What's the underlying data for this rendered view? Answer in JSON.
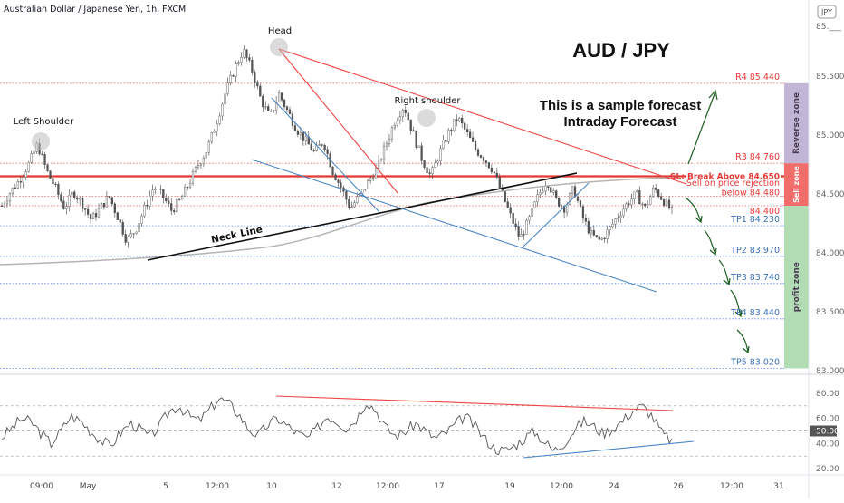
{
  "header": {
    "symbol_title": "Australian Dollar / Japanese Yen, 1h, FXCM",
    "logo_text": "JPY"
  },
  "chart_data": [
    {
      "type": "candlestick",
      "title": "AUD / JPY",
      "annotations": {
        "forecast_line1": "This is a sample forecast",
        "forecast_line2": "Intraday Forecast",
        "head": "Head",
        "left_shoulder": "Left Shoulder",
        "right_shoulder": "Right shoulder",
        "neck_line": "Neck Line"
      },
      "y_axis": {
        "ticks": [
          "85.500",
          "85.000",
          "84.500",
          "84.000",
          "83.500",
          "83.000"
        ],
        "top_partial_tick": "85.___",
        "ylim": [
          83.0,
          85.75
        ]
      },
      "x_axis": {
        "ticks": [
          "09:00",
          "May",
          "5",
          "12:00",
          "10",
          "12",
          "12:00",
          "17",
          "19",
          "12:00",
          "24",
          "26",
          "12:00",
          "31"
        ]
      },
      "levels": [
        {
          "label": "R4 85.440",
          "value": 85.44,
          "color": "#e53935",
          "style": "dotted"
        },
        {
          "label": "R3 84.760",
          "value": 84.76,
          "color": "#e53935",
          "style": "dotted"
        },
        {
          "label": "SL: Break Above 84.650",
          "value": 84.65,
          "color": "#e53935",
          "style": "solid",
          "highlight": true
        },
        {
          "label": "Sell on price rejection",
          "value": 84.56,
          "color": "#e53935",
          "style": "none"
        },
        {
          "label": "below 84.480",
          "value": 84.48,
          "color": "#e53935",
          "style": "dotted"
        },
        {
          "label": "84.400",
          "value": 84.4,
          "color": "#e53935",
          "style": "dotted"
        },
        {
          "label": "TP1 84.230",
          "value": 84.23,
          "color": "#2962ff",
          "style": "dotted"
        },
        {
          "label": "TP2 83.970",
          "value": 83.97,
          "color": "#2962ff",
          "style": "dotted"
        },
        {
          "label": "TP3 83.740",
          "value": 83.74,
          "color": "#2962ff",
          "style": "dotted"
        },
        {
          "label": "TP4 83.440",
          "value": 83.44,
          "color": "#2962ff",
          "style": "dotted"
        },
        {
          "label": "TP5 83.020",
          "value": 83.02,
          "color": "#2962ff",
          "style": "dotted"
        }
      ],
      "zones": [
        {
          "label": "Reverse zone",
          "from": 84.76,
          "to": 85.44,
          "color": "#b7a9cf"
        },
        {
          "label": "Sell zone",
          "from": 84.4,
          "to": 84.76,
          "color": "#ef5350"
        },
        {
          "label": "profit zone",
          "from": 83.02,
          "to": 84.4,
          "color": "#a5d6a7"
        }
      ],
      "price_path": [
        84.4,
        84.52,
        84.62,
        84.75,
        84.92,
        84.7,
        84.55,
        84.38,
        84.52,
        84.42,
        84.28,
        84.38,
        84.48,
        84.3,
        84.1,
        84.2,
        84.38,
        84.56,
        84.48,
        84.36,
        84.45,
        84.6,
        84.75,
        84.88,
        85.1,
        85.35,
        85.55,
        85.72,
        85.55,
        85.3,
        85.15,
        85.35,
        85.2,
        85.05,
        84.95,
        84.85,
        84.95,
        84.7,
        84.55,
        84.38,
        84.48,
        84.6,
        84.72,
        84.92,
        85.12,
        85.25,
        85.02,
        84.8,
        84.65,
        84.85,
        85.02,
        85.15,
        85.02,
        84.88,
        84.8,
        84.7,
        84.5,
        84.3,
        84.12,
        84.28,
        84.48,
        84.62,
        84.45,
        84.38,
        84.55,
        84.3,
        84.15,
        84.1,
        84.2,
        84.32,
        84.42,
        84.5,
        84.38,
        84.55,
        84.45,
        84.35
      ]
    },
    {
      "type": "line",
      "series": [
        {
          "name": "",
          "values": [
            45,
            52,
            60,
            57,
            48,
            40,
            50,
            62,
            58,
            50,
            43,
            38,
            48,
            56,
            52,
            45,
            54,
            66,
            70,
            62,
            58,
            66,
            76,
            72,
            64,
            52,
            46,
            55,
            60,
            54,
            48,
            44,
            52,
            62,
            58,
            52,
            60,
            74,
            66,
            52,
            46,
            50,
            56,
            50,
            44,
            48,
            55,
            62,
            54,
            44,
            36,
            34,
            38,
            44,
            50,
            42,
            34,
            40,
            50,
            58,
            54,
            48,
            52,
            58,
            66,
            70,
            62,
            48,
            42
          ]
        }
      ],
      "y_axis": {
        "ticks": [
          "80.00",
          "60.00",
          "50.00",
          "40.00",
          "20.00"
        ],
        "ylim": [
          15,
          85
        ],
        "current_value": "50.00"
      }
    }
  ]
}
